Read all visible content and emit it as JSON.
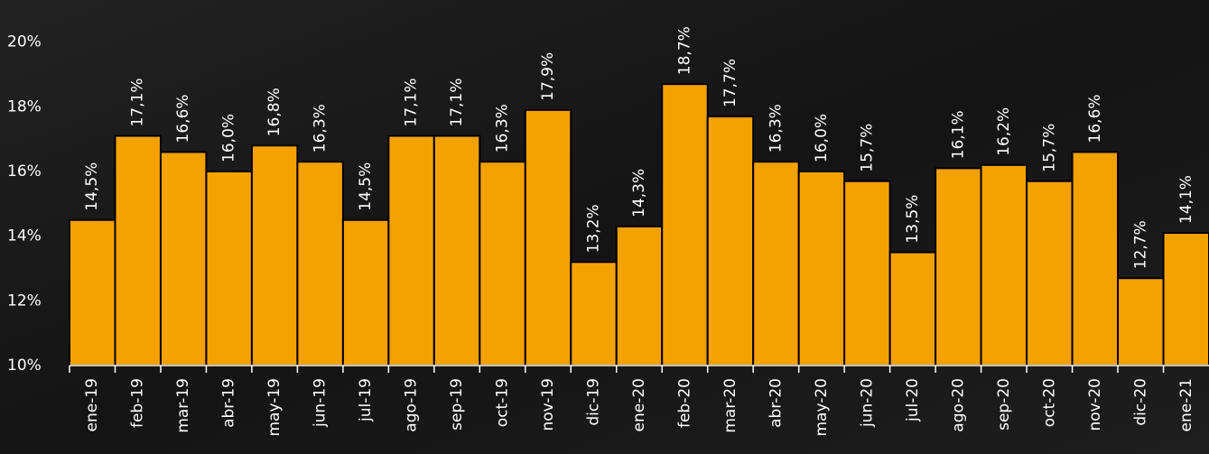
{
  "chart_data": {
    "type": "bar",
    "categories": [
      "ene-19",
      "feb-19",
      "mar-19",
      "abr-19",
      "may-19",
      "jun-19",
      "jul-19",
      "ago-19",
      "sep-19",
      "oct-19",
      "nov-19",
      "dic-19",
      "ene-20",
      "feb-20",
      "mar-20",
      "abr-20",
      "may-20",
      "jun-20",
      "jul-20",
      "ago-20",
      "sep-20",
      "oct-20",
      "nov-20",
      "dic-20",
      "ene-21"
    ],
    "values": [
      14.5,
      17.1,
      16.6,
      16.0,
      16.8,
      16.3,
      14.5,
      17.1,
      17.1,
      16.3,
      17.9,
      13.2,
      14.3,
      18.7,
      17.7,
      16.3,
      16.0,
      15.7,
      13.5,
      16.1,
      16.2,
      15.7,
      16.6,
      12.7,
      14.1
    ],
    "value_labels": [
      "14,5%",
      "17,1%",
      "16,6%",
      "16,0%",
      "16,8%",
      "16,3%",
      "14,5%",
      "17,1%",
      "17,1%",
      "16,3%",
      "17,9%",
      "13,2%",
      "14,3%",
      "18,7%",
      "17,7%",
      "16,3%",
      "16,0%",
      "15,7%",
      "13,5%",
      "16,1%",
      "16,2%",
      "15,7%",
      "16,6%",
      "12,7%",
      "14,1%"
    ],
    "color": "#f5a100",
    "ylim": [
      10,
      21.3
    ],
    "yticks": [
      {
        "value": 10,
        "label": "10%"
      },
      {
        "value": 12,
        "label": "12%"
      },
      {
        "value": 14,
        "label": "14%"
      },
      {
        "value": 16,
        "label": "16%"
      },
      {
        "value": 18,
        "label": "18%"
      },
      {
        "value": 20,
        "label": "20%"
      }
    ],
    "grid": false
  }
}
